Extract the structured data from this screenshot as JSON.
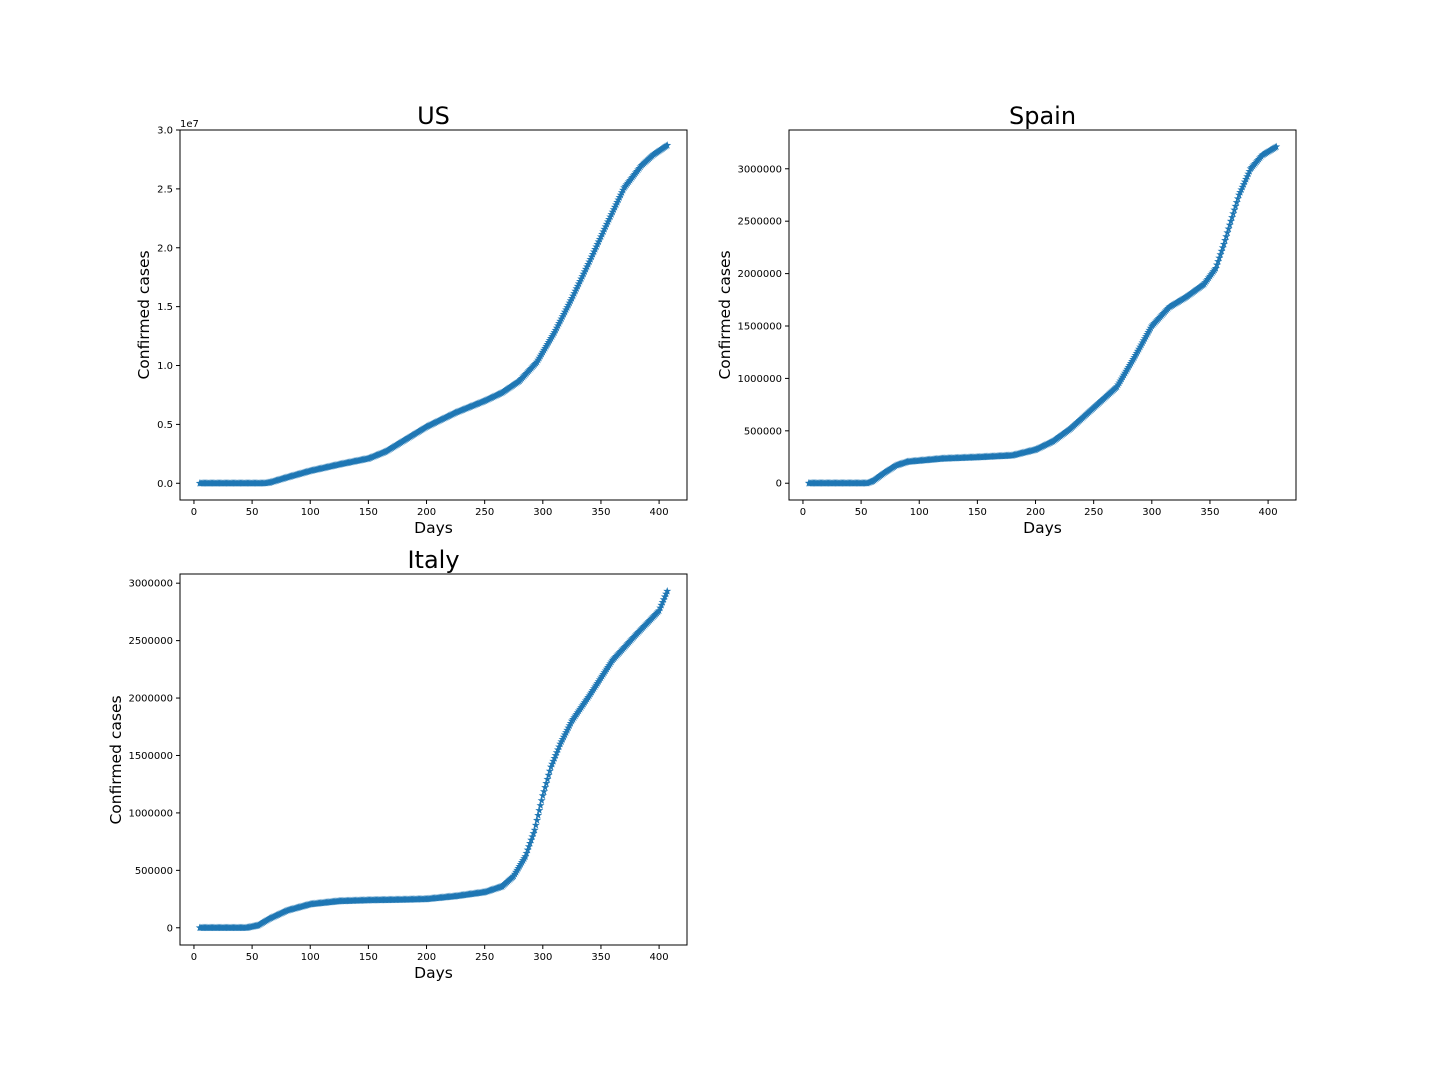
{
  "colors": {
    "series": "#1f77b4",
    "axes": "#000000",
    "background": "#ffffff"
  },
  "chart_data": [
    {
      "type": "scatter",
      "marker": "star",
      "title": "US",
      "xlabel": "Days",
      "ylabel": "Confirmed cases",
      "xlim": [
        -12,
        424
      ],
      "ylim": [
        -1420000,
        30000000
      ],
      "xticks": [
        0,
        50,
        100,
        150,
        200,
        250,
        300,
        350,
        400
      ],
      "yticks": [
        0,
        5000000,
        10000000,
        15000000,
        20000000,
        25000000,
        30000000
      ],
      "ytick_labels": [
        "0.0",
        "0.5",
        "1.0",
        "1.5",
        "2.0",
        "2.5",
        "3.0"
      ],
      "y_offset_label": "1e7",
      "grid": false,
      "series": [
        {
          "x": [
            5,
            60,
            65,
            80,
            100,
            125,
            150,
            165,
            180,
            200,
            225,
            250,
            265,
            280,
            295,
            310,
            325,
            340,
            355,
            370,
            385,
            395,
            407
          ],
          "values": [
            0,
            0,
            60000,
            500000,
            1050000,
            1600000,
            2100000,
            2700000,
            3600000,
            4800000,
            6000000,
            7000000,
            7700000,
            8700000,
            10300000,
            12800000,
            15700000,
            18800000,
            22000000,
            25100000,
            27000000,
            27900000,
            28700000
          ]
        }
      ]
    },
    {
      "type": "scatter",
      "marker": "star",
      "title": "Spain",
      "xlabel": "Days",
      "ylabel": "Confirmed cases",
      "xlim": [
        -12,
        424
      ],
      "ylim": [
        -160000,
        3370000
      ],
      "xticks": [
        0,
        50,
        100,
        150,
        200,
        250,
        300,
        350,
        400
      ],
      "yticks": [
        0,
        500000,
        1000000,
        1500000,
        2000000,
        2500000,
        3000000
      ],
      "ytick_labels": [
        "0",
        "500000",
        "1000000",
        "1500000",
        "2000000",
        "2500000",
        "3000000"
      ],
      "grid": false,
      "series": [
        {
          "x": [
            5,
            55,
            60,
            70,
            80,
            90,
            100,
            120,
            150,
            180,
            200,
            215,
            230,
            250,
            270,
            285,
            300,
            315,
            330,
            345,
            355,
            362,
            368,
            375,
            385,
            395,
            407
          ],
          "values": [
            0,
            0,
            20000,
            100000,
            170000,
            205000,
            215000,
            235000,
            248000,
            265000,
            320000,
            400000,
            520000,
            720000,
            920000,
            1200000,
            1500000,
            1680000,
            1780000,
            1900000,
            2050000,
            2280000,
            2500000,
            2750000,
            3000000,
            3130000,
            3210000
          ]
        }
      ]
    },
    {
      "type": "scatter",
      "marker": "star",
      "title": "Italy",
      "xlabel": "Days",
      "ylabel": "Confirmed cases",
      "xlim": [
        -12,
        424
      ],
      "ylim": [
        -150000,
        3080000
      ],
      "xticks": [
        0,
        50,
        100,
        150,
        200,
        250,
        300,
        350,
        400
      ],
      "yticks": [
        0,
        500000,
        1000000,
        1500000,
        2000000,
        2500000,
        3000000
      ],
      "ytick_labels": [
        "0",
        "500000",
        "1000000",
        "1500000",
        "2000000",
        "2500000",
        "3000000"
      ],
      "grid": false,
      "series": [
        {
          "x": [
            5,
            45,
            55,
            65,
            80,
            100,
            125,
            150,
            180,
            200,
            225,
            250,
            265,
            275,
            285,
            293,
            300,
            307,
            315,
            325,
            340,
            360,
            380,
            400,
            407
          ],
          "values": [
            0,
            0,
            20000,
            80000,
            150000,
            205000,
            232000,
            240000,
            245000,
            250000,
            275000,
            310000,
            360000,
            450000,
            620000,
            850000,
            1150000,
            1400000,
            1600000,
            1800000,
            2020000,
            2330000,
            2550000,
            2760000,
            2930000
          ]
        }
      ]
    }
  ]
}
